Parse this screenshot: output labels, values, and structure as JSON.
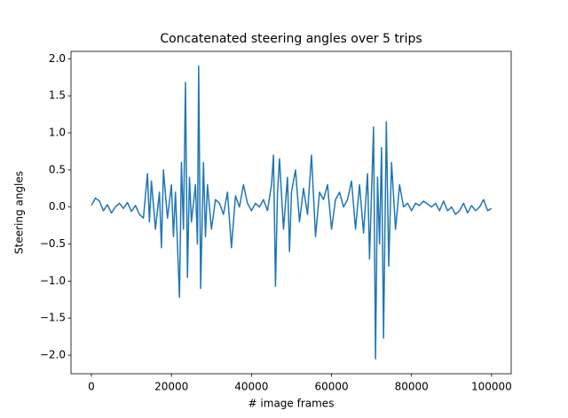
{
  "chart_data": {
    "type": "line",
    "title": "Concatenated steering angles over 5 trips",
    "xlabel": "# image frames",
    "ylabel": "Steering angles",
    "color": "#1f77b4",
    "x": [
      0,
      1000,
      2000,
      3000,
      4000,
      5000,
      6000,
      7000,
      8000,
      9000,
      10000,
      11000,
      12000,
      13000,
      14000,
      14500,
      15000,
      16000,
      17000,
      17500,
      18000,
      19000,
      20000,
      20500,
      21000,
      21500,
      22000,
      22500,
      23000,
      23500,
      24000,
      24500,
      25000,
      26000,
      26500,
      26800,
      27300,
      28000,
      28500,
      29000,
      30000,
      31000,
      32000,
      33000,
      34000,
      35000,
      36000,
      37000,
      38000,
      39000,
      40000,
      41000,
      42000,
      43000,
      44000,
      45000,
      45500,
      46000,
      46500,
      47000,
      48000,
      49000,
      49500,
      50000,
      51000,
      52000,
      53000,
      54000,
      55000,
      56000,
      57000,
      58000,
      59000,
      60000,
      61000,
      62000,
      63000,
      64000,
      65000,
      66000,
      67000,
      68000,
      69000,
      69500,
      70500,
      71000,
      71500,
      72000,
      72500,
      73000,
      73700,
      74300,
      75000,
      76000,
      77000,
      78000,
      79000,
      80000,
      81000,
      82000,
      83000,
      84000,
      85000,
      86000,
      87000,
      88000,
      89000,
      90000,
      91000,
      92000,
      93000,
      94000,
      95000,
      96000,
      97000,
      98000,
      99000,
      100000
    ],
    "values": [
      0.02,
      0.12,
      0.08,
      -0.05,
      0.03,
      -0.08,
      0.0,
      0.05,
      -0.02,
      0.06,
      -0.06,
      0.02,
      -0.1,
      -0.15,
      0.45,
      -0.2,
      0.35,
      -0.3,
      0.2,
      -0.55,
      0.5,
      -0.15,
      0.3,
      -0.4,
      0.2,
      -0.5,
      -1.22,
      0.6,
      -0.3,
      1.68,
      -0.95,
      0.4,
      -0.2,
      0.3,
      -0.5,
      1.9,
      -1.1,
      0.6,
      -0.4,
      0.3,
      -0.3,
      0.1,
      0.05,
      -0.1,
      0.2,
      -0.55,
      0.15,
      0.0,
      0.3,
      0.05,
      -0.05,
      0.05,
      0.0,
      0.1,
      -0.05,
      0.3,
      0.7,
      -1.07,
      0.2,
      0.65,
      -0.3,
      0.4,
      -0.6,
      0.2,
      0.5,
      -0.2,
      0.25,
      -0.1,
      0.7,
      -0.4,
      0.2,
      0.1,
      0.3,
      -0.3,
      0.1,
      0.2,
      0.0,
      0.1,
      0.35,
      -0.3,
      0.3,
      -0.35,
      0.45,
      -0.7,
      1.08,
      -2.05,
      0.4,
      -0.5,
      0.8,
      -1.77,
      1.15,
      -0.8,
      0.6,
      -0.3,
      0.3,
      0.0,
      0.05,
      -0.05,
      0.05,
      0.02,
      0.08,
      0.04,
      0.0,
      0.05,
      -0.05,
      0.08,
      -0.05,
      0.0,
      -0.1,
      -0.05,
      0.05,
      -0.08,
      0.02,
      -0.05,
      0.0,
      0.1,
      -0.05,
      -0.02
    ],
    "xlim": [
      -5100,
      104900
    ],
    "ylim": [
      -2.25,
      2.1
    ],
    "xticks": [
      0,
      20000,
      40000,
      60000,
      80000,
      100000
    ],
    "yticks": [
      {
        "value": -2,
        "label": "−2.0"
      },
      {
        "value": -1.5,
        "label": "−1.5"
      },
      {
        "value": -1,
        "label": "−1.0"
      },
      {
        "value": -0.5,
        "label": "−0.5"
      },
      {
        "value": 0,
        "label": "0.0"
      },
      {
        "value": 0.5,
        "label": "0.5"
      },
      {
        "value": 1,
        "label": "1.0"
      },
      {
        "value": 1.5,
        "label": "1.5"
      },
      {
        "value": 2,
        "label": "2.0"
      }
    ]
  }
}
